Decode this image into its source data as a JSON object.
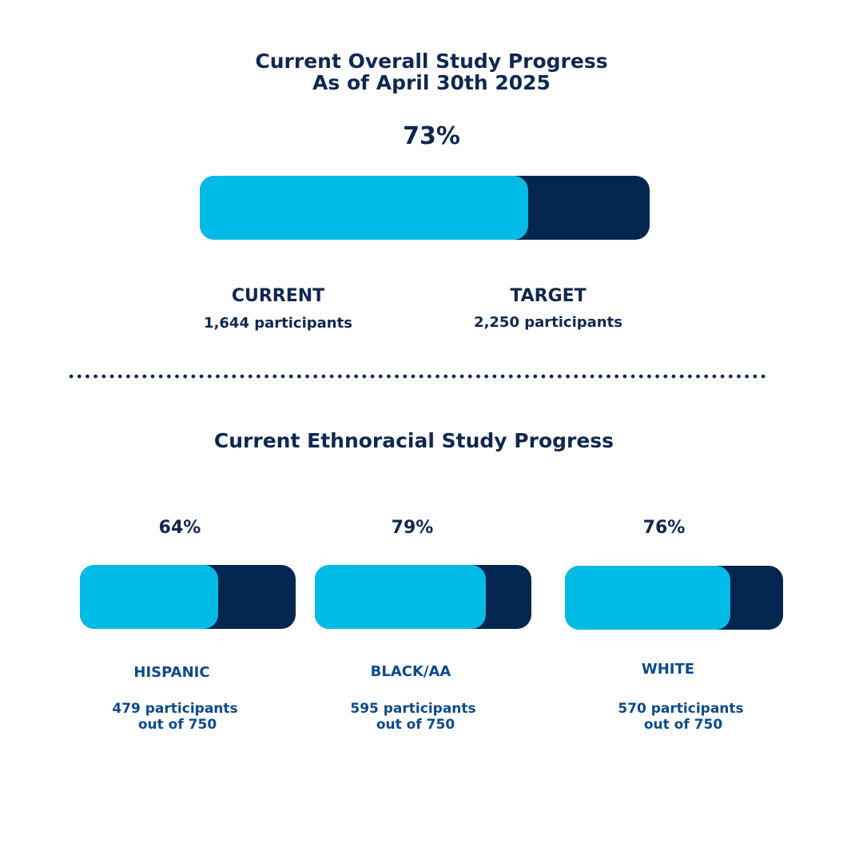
{
  "title_line1": "Current Overall Study Progress",
  "title_line2": "As of April 30th 2025",
  "chart_data": [
    {
      "type": "bar",
      "orientation": "horizontal-progress",
      "title": "Current Overall Study Progress",
      "subtitle": "As of April 30th 2025",
      "percent_label": "73%",
      "value": 1644,
      "target": 2250,
      "fraction": 0.73,
      "current_label": "CURRENT",
      "current_value": "1,644 participants",
      "target_label": "TARGET",
      "target_value": "2,250 participants"
    },
    {
      "type": "bar",
      "orientation": "horizontal-progress",
      "title": "Current Ethnoracial Study Progress",
      "groups": [
        {
          "name": "HISPANIC",
          "percent_label": "64%",
          "fraction": 0.64,
          "value": 479,
          "target": 750,
          "count_line1": "479 participants",
          "count_line2": "out of 750"
        },
        {
          "name": "BLACK/AA",
          "percent_label": "79%",
          "fraction": 0.79,
          "value": 595,
          "target": 750,
          "count_line1": "595 participants",
          "count_line2": "out of 750"
        },
        {
          "name": "WHITE",
          "percent_label": "76%",
          "fraction": 0.76,
          "value": 570,
          "target": 750,
          "count_line1": "570 participants",
          "count_line2": "out of 750"
        }
      ]
    }
  ],
  "colors": {
    "fill": "#00bbe6",
    "track": "#02264f",
    "text_dark": "#10284f",
    "text_blue": "#0d4a87"
  }
}
